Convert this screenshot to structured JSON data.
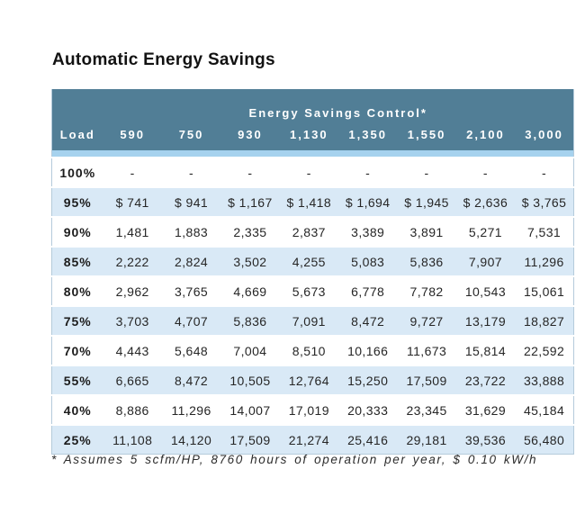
{
  "colors": {
    "header_bg": "#517E96",
    "header_text": "#FFFFFF",
    "accent_strip": "#A6D2EE",
    "row_alt_bg": "#D9E9F6",
    "table_border": "#B5CBDB",
    "title_text": "#121212",
    "cell_text": "#262626"
  },
  "chart_data": {
    "type": "table",
    "title": "Automatic Energy Savings",
    "group_header": "Energy Savings Control*",
    "columns": [
      "Load",
      "590",
      "750",
      "930",
      "1,130",
      "1,350",
      "1,550",
      "2,100",
      "3,000"
    ],
    "rows": [
      {
        "load": "100%",
        "values": [
          "-",
          "-",
          "-",
          "-",
          "-",
          "-",
          "-",
          "-"
        ]
      },
      {
        "load": "95%",
        "values": [
          "$ 741",
          "$ 941",
          "$ 1,167",
          "$ 1,418",
          "$ 1,694",
          "$ 1,945",
          "$ 2,636",
          "$ 3,765"
        ]
      },
      {
        "load": "90%",
        "values": [
          "1,481",
          "1,883",
          "2,335",
          "2,837",
          "3,389",
          "3,891",
          "5,271",
          "7,531"
        ]
      },
      {
        "load": "85%",
        "values": [
          "2,222",
          "2,824",
          "3,502",
          "4,255",
          "5,083",
          "5,836",
          "7,907",
          "11,296"
        ]
      },
      {
        "load": "80%",
        "values": [
          "2,962",
          "3,765",
          "4,669",
          "5,673",
          "6,778",
          "7,782",
          "10,543",
          "15,061"
        ]
      },
      {
        "load": "75%",
        "values": [
          "3,703",
          "4,707",
          "5,836",
          "7,091",
          "8,472",
          "9,727",
          "13,179",
          "18,827"
        ]
      },
      {
        "load": "70%",
        "values": [
          "4,443",
          "5,648",
          "7,004",
          "8,510",
          "10,166",
          "11,673",
          "15,814",
          "22,592"
        ]
      },
      {
        "load": "55%",
        "values": [
          "6,665",
          "8,472",
          "10,505",
          "12,764",
          "15,250",
          "17,509",
          "23,722",
          "33,888"
        ]
      },
      {
        "load": "40%",
        "values": [
          "8,886",
          "11,296",
          "14,007",
          "17,019",
          "20,333",
          "23,345",
          "31,629",
          "45,184"
        ]
      },
      {
        "load": "25%",
        "values": [
          "11,108",
          "14,120",
          "17,509",
          "21,274",
          "25,416",
          "29,181",
          "39,536",
          "56,480"
        ]
      }
    ],
    "footnote": "* Assumes 5 scfm/HP, 8760 hours of operation per year, $ 0.10 kW/h",
    "layout": {
      "striping": "alternate rows light blue starting at second data row",
      "alignment": "center",
      "legend_position": "none",
      "grid": "off"
    }
  }
}
